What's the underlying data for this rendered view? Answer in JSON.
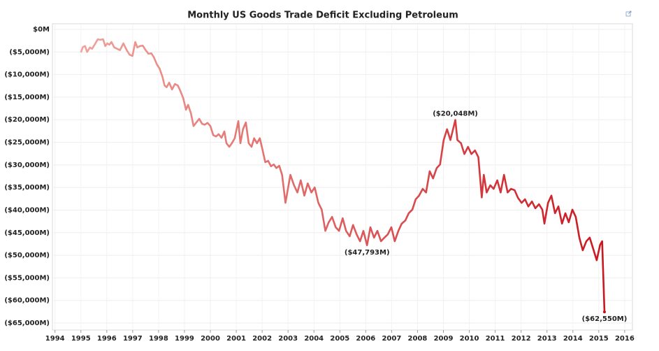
{
  "chart_data": {
    "type": "line",
    "title": "Monthly US Goods Trade Deficit Excluding Petroleum",
    "xlim": [
      1993.9,
      2016.3
    ],
    "xticks": [
      1994,
      1995,
      1996,
      1997,
      1998,
      1999,
      2000,
      2001,
      2002,
      2003,
      2004,
      2005,
      2006,
      2007,
      2008,
      2009,
      2010,
      2011,
      2012,
      2013,
      2014,
      2015,
      2016
    ],
    "ylim": [
      -65000,
      0
    ],
    "yticks": [
      {
        "value": 0,
        "label": "$0M"
      },
      {
        "value": -5000,
        "label": "($5,000M)"
      },
      {
        "value": -10000,
        "label": "($10,000M)"
      },
      {
        "value": -15000,
        "label": "($15,000M)"
      },
      {
        "value": -20000,
        "label": "($20,000M)"
      },
      {
        "value": -25000,
        "label": "($25,000M)"
      },
      {
        "value": -30000,
        "label": "($30,000M)"
      },
      {
        "value": -35000,
        "label": "($35,000M)"
      },
      {
        "value": -40000,
        "label": "($40,000M)"
      },
      {
        "value": -45000,
        "label": "($45,000M)"
      },
      {
        "value": -50000,
        "label": "($50,000M)"
      },
      {
        "value": -55000,
        "label": "($55,000M)"
      },
      {
        "value": -60000,
        "label": "($60,000M)"
      },
      {
        "value": -65000,
        "label": "($65,000M)"
      }
    ],
    "grid": true,
    "series": [
      {
        "color": "#c8101a",
        "gradient_start_color": "#f2aaa2",
        "x": [
          1995.0,
          1995.08,
          1995.16,
          1995.24,
          1995.35,
          1995.43,
          1995.56,
          1995.65,
          1995.75,
          1995.86,
          1995.94,
          1996.02,
          1996.1,
          1996.18,
          1996.29,
          1996.4,
          1996.51,
          1996.64,
          1996.77,
          1996.88,
          1996.99,
          1997.1,
          1997.18,
          1997.28,
          1997.39,
          1997.5,
          1997.61,
          1997.72,
          1997.82,
          1997.93,
          1998.04,
          1998.15,
          1998.23,
          1998.31,
          1998.41,
          1998.52,
          1998.63,
          1998.74,
          1998.84,
          1998.95,
          1999.06,
          1999.14,
          1999.25,
          1999.35,
          1999.46,
          1999.57,
          1999.68,
          1999.78,
          1999.89,
          2000.0,
          2000.11,
          2000.22,
          2000.32,
          2000.43,
          2000.54,
          2000.62,
          2000.73,
          2000.83,
          2000.94,
          2001.08,
          2001.16,
          2001.26,
          2001.37,
          2001.48,
          2001.59,
          2001.69,
          2001.8,
          2001.91,
          2002.02,
          2002.12,
          2002.23,
          2002.34,
          2002.45,
          2002.55,
          2002.66,
          2002.77,
          2002.9,
          2003.09,
          2003.23,
          2003.36,
          2003.49,
          2003.63,
          2003.76,
          2003.9,
          2004.03,
          2004.17,
          2004.3,
          2004.44,
          2004.57,
          2004.7,
          2004.84,
          2004.97,
          2005.11,
          2005.24,
          2005.38,
          2005.51,
          2005.65,
          2005.78,
          2005.91,
          2006.05,
          2006.18,
          2006.32,
          2006.45,
          2006.59,
          2006.72,
          2006.85,
          2006.99,
          2007.12,
          2007.26,
          2007.39,
          2007.53,
          2007.66,
          2007.8,
          2007.93,
          2008.06,
          2008.2,
          2008.33,
          2008.47,
          2008.6,
          2008.74,
          2008.87,
          2009.01,
          2009.14,
          2009.27,
          2009.46,
          2009.54,
          2009.68,
          2009.81,
          2009.95,
          2010.08,
          2010.22,
          2010.35,
          2010.48,
          2010.56,
          2010.67,
          2010.81,
          2010.94,
          2011.08,
          2011.21,
          2011.34,
          2011.48,
          2011.61,
          2011.75,
          2011.88,
          2012.02,
          2012.15,
          2012.28,
          2012.42,
          2012.55,
          2012.69,
          2012.82,
          2012.9,
          2013.04,
          2013.17,
          2013.31,
          2013.44,
          2013.58,
          2013.71,
          2013.84,
          2013.98,
          2014.11,
          2014.25,
          2014.38,
          2014.52,
          2014.65,
          2014.78,
          2014.92,
          2015.05,
          2015.13,
          2015.22
        ],
        "values": [
          -5100,
          -3900,
          -3700,
          -5000,
          -4000,
          -4300,
          -3100,
          -2200,
          -2300,
          -2200,
          -3700,
          -3100,
          -3400,
          -2800,
          -4000,
          -4300,
          -4600,
          -3100,
          -4600,
          -5600,
          -5900,
          -2800,
          -4000,
          -3700,
          -3600,
          -4600,
          -5400,
          -5300,
          -6200,
          -7700,
          -8700,
          -10500,
          -12400,
          -12800,
          -11800,
          -13300,
          -12100,
          -12400,
          -13600,
          -15200,
          -17800,
          -16700,
          -18600,
          -21400,
          -20600,
          -19800,
          -20900,
          -21100,
          -20700,
          -21400,
          -23400,
          -23700,
          -23200,
          -24000,
          -22600,
          -25200,
          -26000,
          -25200,
          -24100,
          -20300,
          -25200,
          -22100,
          -20600,
          -25200,
          -26000,
          -24100,
          -25200,
          -24100,
          -26800,
          -29400,
          -29100,
          -30300,
          -29900,
          -30700,
          -30200,
          -32200,
          -38400,
          -32200,
          -34500,
          -36100,
          -33400,
          -36800,
          -34100,
          -36100,
          -35000,
          -38400,
          -39900,
          -44600,
          -42700,
          -41500,
          -43800,
          -44600,
          -41800,
          -44600,
          -45800,
          -43300,
          -45400,
          -46900,
          -44600,
          -47793,
          -43800,
          -46100,
          -44600,
          -46900,
          -46100,
          -45400,
          -43800,
          -46900,
          -44600,
          -43000,
          -42300,
          -40700,
          -39900,
          -37600,
          -36800,
          -35300,
          -36100,
          -31400,
          -33000,
          -30700,
          -29900,
          -24500,
          -22100,
          -24500,
          -20048,
          -24500,
          -25200,
          -27600,
          -26000,
          -27600,
          -26800,
          -28300,
          -37200,
          -32200,
          -36100,
          -34500,
          -35300,
          -33400,
          -36100,
          -32200,
          -36100,
          -35300,
          -35600,
          -37300,
          -38400,
          -37600,
          -39200,
          -38100,
          -39600,
          -38700,
          -39900,
          -43000,
          -38400,
          -36800,
          -40700,
          -39200,
          -43000,
          -40700,
          -42700,
          -39900,
          -41500,
          -46100,
          -48900,
          -46900,
          -46100,
          -48500,
          -51100,
          -47700,
          -46900,
          -62550
        ],
        "value_labels": [
          null,
          null,
          null,
          null,
          null,
          null,
          null,
          null,
          null,
          null,
          null,
          null,
          null,
          null,
          null,
          null,
          null,
          null,
          null,
          null,
          null,
          null,
          null,
          null,
          null,
          null,
          null,
          null,
          null,
          null,
          null,
          null,
          null,
          null,
          null,
          null,
          null,
          null,
          null,
          null,
          null,
          null,
          null,
          null,
          null,
          null,
          null,
          null,
          null,
          null,
          null,
          null,
          null,
          null,
          null,
          null,
          null,
          null,
          null,
          null,
          null,
          null,
          null,
          null,
          null,
          null,
          null,
          null,
          null,
          null,
          null,
          null,
          null,
          null,
          null,
          null,
          null,
          null,
          null,
          null,
          null,
          null,
          null,
          null,
          null,
          null,
          null,
          null,
          null,
          null,
          null,
          null,
          null,
          null,
          null,
          null,
          null,
          null,
          null,
          "($47,793M)",
          null,
          null,
          null,
          null,
          null,
          null,
          null,
          null,
          null,
          null,
          null,
          null,
          null,
          null,
          null,
          null,
          null,
          null,
          null,
          null,
          null,
          null,
          null,
          null,
          "($20,048M)",
          null,
          null,
          null,
          null,
          null,
          null,
          null,
          null,
          null,
          null,
          null,
          null,
          null,
          null,
          null,
          null,
          null,
          null,
          null,
          null,
          null,
          null,
          null,
          null,
          null,
          null,
          null,
          null,
          null,
          null,
          null,
          null,
          null,
          null,
          null,
          null,
          null,
          null,
          null,
          null,
          null,
          null,
          null,
          null,
          "($62,550M)"
        ]
      }
    ]
  }
}
